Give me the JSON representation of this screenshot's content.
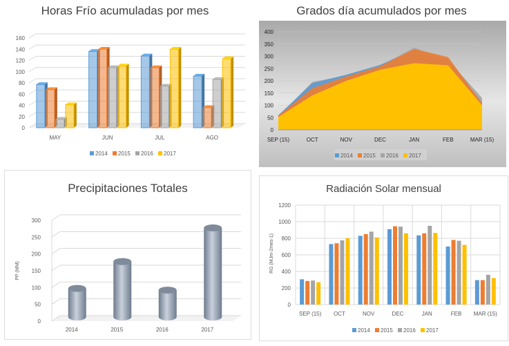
{
  "colors": {
    "s2014": "#5b9bd5",
    "s2015": "#ed7d31",
    "s2016": "#a5a5a5",
    "s2017": "#ffc000",
    "cyl": "#9aa6b6"
  },
  "chart_data": [
    {
      "type": "bar",
      "title": "Horas Frío acumuladas por mes",
      "categories": [
        "MAY",
        "JUN",
        "JUL",
        "AGO"
      ],
      "yticks": [
        "0",
        "20",
        "40",
        "60",
        "80",
        "100",
        "120",
        "140",
        "160"
      ],
      "ylim": [
        0,
        160
      ],
      "grid": true,
      "legend": "bottom",
      "series": [
        {
          "name": "2014",
          "values": [
            77,
            136,
            128,
            92
          ]
        },
        {
          "name": "2015",
          "values": [
            68,
            140,
            107,
            36
          ]
        },
        {
          "name": "2016",
          "values": [
            15,
            107,
            74,
            86
          ]
        },
        {
          "name": "2017",
          "values": [
            41,
            110,
            140,
            123
          ]
        }
      ]
    },
    {
      "type": "area",
      "title": "Grados día acumulados por mes",
      "categories": [
        "SEP (15)",
        "OCT",
        "NOV",
        "DEC",
        "JAN",
        "FEB",
        "MAR (15)"
      ],
      "yticks": [
        "0",
        "50",
        "100",
        "150",
        "200",
        "250",
        "300",
        "350",
        "400"
      ],
      "ylim": [
        0,
        400
      ],
      "grid": true,
      "legend": "bottom",
      "series": [
        {
          "name": "2014",
          "values": [
            60,
            190,
            225,
            265,
            325,
            290,
            110
          ]
        },
        {
          "name": "2015",
          "values": [
            58,
            170,
            218,
            260,
            330,
            297,
            108
          ]
        },
        {
          "name": "2016",
          "values": [
            55,
            195,
            222,
            262,
            335,
            285,
            130
          ]
        },
        {
          "name": "2017",
          "values": [
            52,
            140,
            200,
            245,
            272,
            263,
            100
          ]
        }
      ]
    },
    {
      "type": "bar",
      "title": "Precipitaciones Totales",
      "ylabel": "PP (MM)",
      "categories": [
        "2014",
        "2015",
        "2016",
        "2017"
      ],
      "yticks": [
        "0",
        "50",
        "100",
        "150",
        "200",
        "250",
        "300"
      ],
      "ylim": [
        0,
        300
      ],
      "grid": true,
      "values": [
        85,
        165,
        80,
        265
      ]
    },
    {
      "type": "bar",
      "title": "Radiación Solar mensual",
      "ylabel": "RG (MJm-2mes-1)",
      "categories": [
        "SEP (15)",
        "OCT",
        "NOV",
        "DEC",
        "JAN",
        "FEB",
        "MAR (15)"
      ],
      "yticks": [
        "0",
        "200",
        "400",
        "600",
        "800",
        "1000",
        "1200"
      ],
      "ylim": [
        0,
        1200
      ],
      "grid": true,
      "legend": "bottom",
      "series": [
        {
          "name": "2014",
          "values": [
            305,
            730,
            830,
            910,
            835,
            700,
            295
          ]
        },
        {
          "name": "2015",
          "values": [
            285,
            740,
            850,
            945,
            860,
            780,
            295
          ]
        },
        {
          "name": "2016",
          "values": [
            290,
            775,
            880,
            940,
            950,
            770,
            360
          ]
        },
        {
          "name": "2017",
          "values": [
            270,
            800,
            810,
            860,
            865,
            720,
            320
          ]
        }
      ]
    }
  ]
}
